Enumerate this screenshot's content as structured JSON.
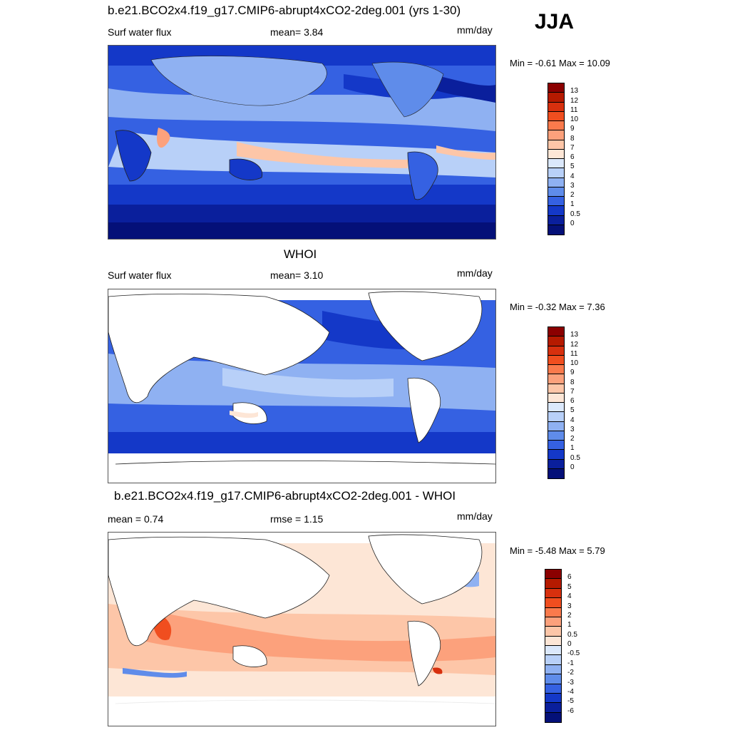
{
  "season": "JJA",
  "units": "mm/day",
  "panel1": {
    "title": "b.e21.BCO2x4.f19_g17.CMIP6-abrupt4xCO2-2deg.001 (yrs 1-30)",
    "left": "Surf water flux",
    "center": "mean=   3.84",
    "units": "mm/day",
    "minmax": "Min =  -0.61 Max =  10.09"
  },
  "panel2": {
    "title": "WHOI",
    "left": "Surf water flux",
    "center": "mean=   3.10",
    "units": "mm/day",
    "minmax": "Min =  -0.32 Max =   7.36"
  },
  "panel3": {
    "title": "b.e21.BCO2x4.f19_g17.CMIP6-abrupt4xCO2-2deg.001 - WHOI",
    "left": "mean =   0.74",
    "center": "rmse =   1.15",
    "units": "mm/day",
    "minmax": "Min =  -5.48 Max =   5.79"
  },
  "colorbar_abs": {
    "labels": [
      "13",
      "12",
      "11",
      "10",
      "9",
      "8",
      "7",
      "6",
      "5",
      "4",
      "3",
      "2",
      "1",
      "0.5",
      "0"
    ],
    "colors": [
      "#8b0000",
      "#b51a00",
      "#d7300e",
      "#f04e1f",
      "#fa7a4c",
      "#fca17c",
      "#fdc6a8",
      "#fde6d6",
      "#dbe8fb",
      "#b8d0f8",
      "#8fb1f2",
      "#5f8cea",
      "#3561e2",
      "#1438c8",
      "#0a1f9c",
      "#041078"
    ]
  },
  "colorbar_diff": {
    "labels": [
      "6",
      "5",
      "4",
      "3",
      "2",
      "1",
      "0.5",
      "0",
      "-0.5",
      "-1",
      "-2",
      "-3",
      "-4",
      "-5",
      "-6"
    ],
    "colors": [
      "#8b0000",
      "#b51a00",
      "#d7300e",
      "#f04e1f",
      "#fa7a4c",
      "#fca17c",
      "#fdc6a8",
      "#fde6d6",
      "#dbe8fb",
      "#b8d0f8",
      "#8fb1f2",
      "#5f8cea",
      "#3561e2",
      "#1438c8",
      "#0a1f9c",
      "#041078"
    ]
  }
}
